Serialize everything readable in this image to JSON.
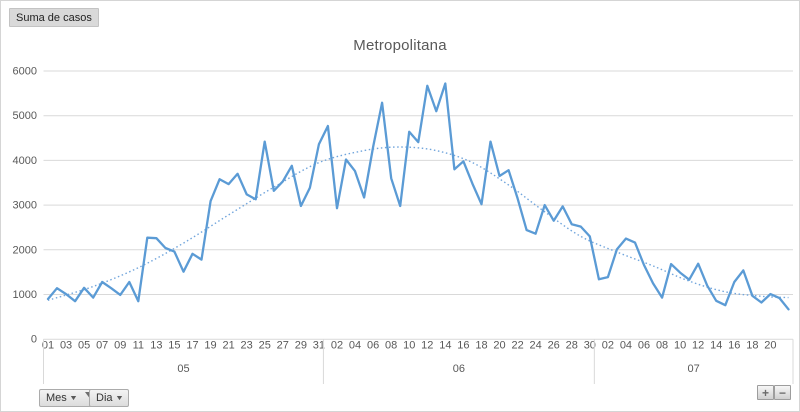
{
  "title": "Metropolitana",
  "value_field_button": {
    "label": "Suma de casos"
  },
  "axis_field_buttons": [
    {
      "label": "Mes",
      "filtered": true
    },
    {
      "label": "Dia",
      "filtered": false
    }
  ],
  "zoom_controls": {
    "zoom_in": "+",
    "zoom_out": "−"
  },
  "colors": {
    "series": "#5B9BD5",
    "trend": "#71A5DC",
    "grid": "#D9D9D9",
    "axis_text": "#595959",
    "title_text": "#595959",
    "filter_icon": "#6e6e6e"
  },
  "chart_data": {
    "type": "line",
    "title": "Metropolitana",
    "series_name": "Suma de casos",
    "xlabel": "",
    "ylabel": "",
    "ylim": [
      0,
      6000
    ],
    "ytick_interval": 1000,
    "ytick_labels": [
      "0",
      "1000",
      "2000",
      "3000",
      "4000",
      "5000",
      "6000"
    ],
    "grid": true,
    "legend": "none",
    "months": [
      {
        "label": "05",
        "days": 31,
        "ticks": [
          [
            1,
            "01"
          ],
          [
            3,
            "03"
          ],
          [
            5,
            "05"
          ],
          [
            7,
            "07"
          ],
          [
            9,
            "09"
          ],
          [
            11,
            "11"
          ],
          [
            13,
            "13"
          ],
          [
            15,
            "15"
          ],
          [
            17,
            "17"
          ],
          [
            19,
            "19"
          ],
          [
            21,
            "21"
          ],
          [
            23,
            "23"
          ],
          [
            25,
            "25"
          ],
          [
            27,
            "27"
          ],
          [
            29,
            "29"
          ],
          [
            31,
            "31"
          ]
        ],
        "values": [
          900,
          1140,
          1010,
          850,
          1150,
          930,
          1280,
          1140,
          990,
          1280,
          850,
          2270,
          2260,
          2040,
          1960,
          1510,
          1910,
          1780,
          3090,
          3580,
          3470,
          3700,
          3240,
          3130,
          4420,
          3320,
          3530,
          3880,
          2980,
          3390,
          4360
        ]
      },
      {
        "label": "06",
        "days": 30,
        "ticks": [
          [
            2,
            "02"
          ],
          [
            4,
            "04"
          ],
          [
            6,
            "06"
          ],
          [
            8,
            "08"
          ],
          [
            10,
            "10"
          ],
          [
            12,
            "12"
          ],
          [
            14,
            "14"
          ],
          [
            16,
            "16"
          ],
          [
            18,
            "18"
          ],
          [
            20,
            "20"
          ],
          [
            22,
            "22"
          ],
          [
            24,
            "24"
          ],
          [
            26,
            "26"
          ],
          [
            28,
            "28"
          ],
          [
            30,
            "30"
          ]
        ],
        "values": [
          4770,
          2930,
          4020,
          3760,
          3170,
          4300,
          5290,
          3600,
          2980,
          4640,
          4410,
          5670,
          5100,
          5720,
          3800,
          3980,
          3480,
          3020,
          4420,
          3650,
          3780,
          3150,
          2440,
          2360,
          3000,
          2650,
          2970,
          2570,
          2520,
          2300
        ]
      },
      {
        "label": "07",
        "days": 22,
        "ticks": [
          [
            2,
            "02"
          ],
          [
            4,
            "04"
          ],
          [
            6,
            "06"
          ],
          [
            8,
            "08"
          ],
          [
            10,
            "10"
          ],
          [
            12,
            "12"
          ],
          [
            14,
            "14"
          ],
          [
            16,
            "16"
          ],
          [
            18,
            "18"
          ],
          [
            20,
            "20"
          ]
        ],
        "values": [
          1340,
          1390,
          2010,
          2250,
          2160,
          1660,
          1250,
          930,
          1680,
          1490,
          1330,
          1690,
          1200,
          860,
          760,
          1280,
          1540,
          970,
          820,
          1010,
          920,
          670
        ]
      }
    ],
    "trendline": {
      "style": "dotted",
      "points": [
        [
          1,
          870
        ],
        [
          6,
          1180
        ],
        [
          11,
          1600
        ],
        [
          16,
          2150
        ],
        [
          21,
          2780
        ],
        [
          26,
          3400
        ],
        [
          31,
          3950
        ],
        [
          36,
          4220
        ],
        [
          40,
          4300
        ],
        [
          44,
          4220
        ],
        [
          48,
          3950
        ],
        [
          52,
          3450
        ],
        [
          56,
          2850
        ],
        [
          60,
          2300
        ],
        [
          64,
          1950
        ],
        [
          68,
          1640
        ],
        [
          72,
          1300
        ],
        [
          76,
          1060
        ],
        [
          80,
          960
        ],
        [
          83,
          930
        ]
      ]
    }
  }
}
